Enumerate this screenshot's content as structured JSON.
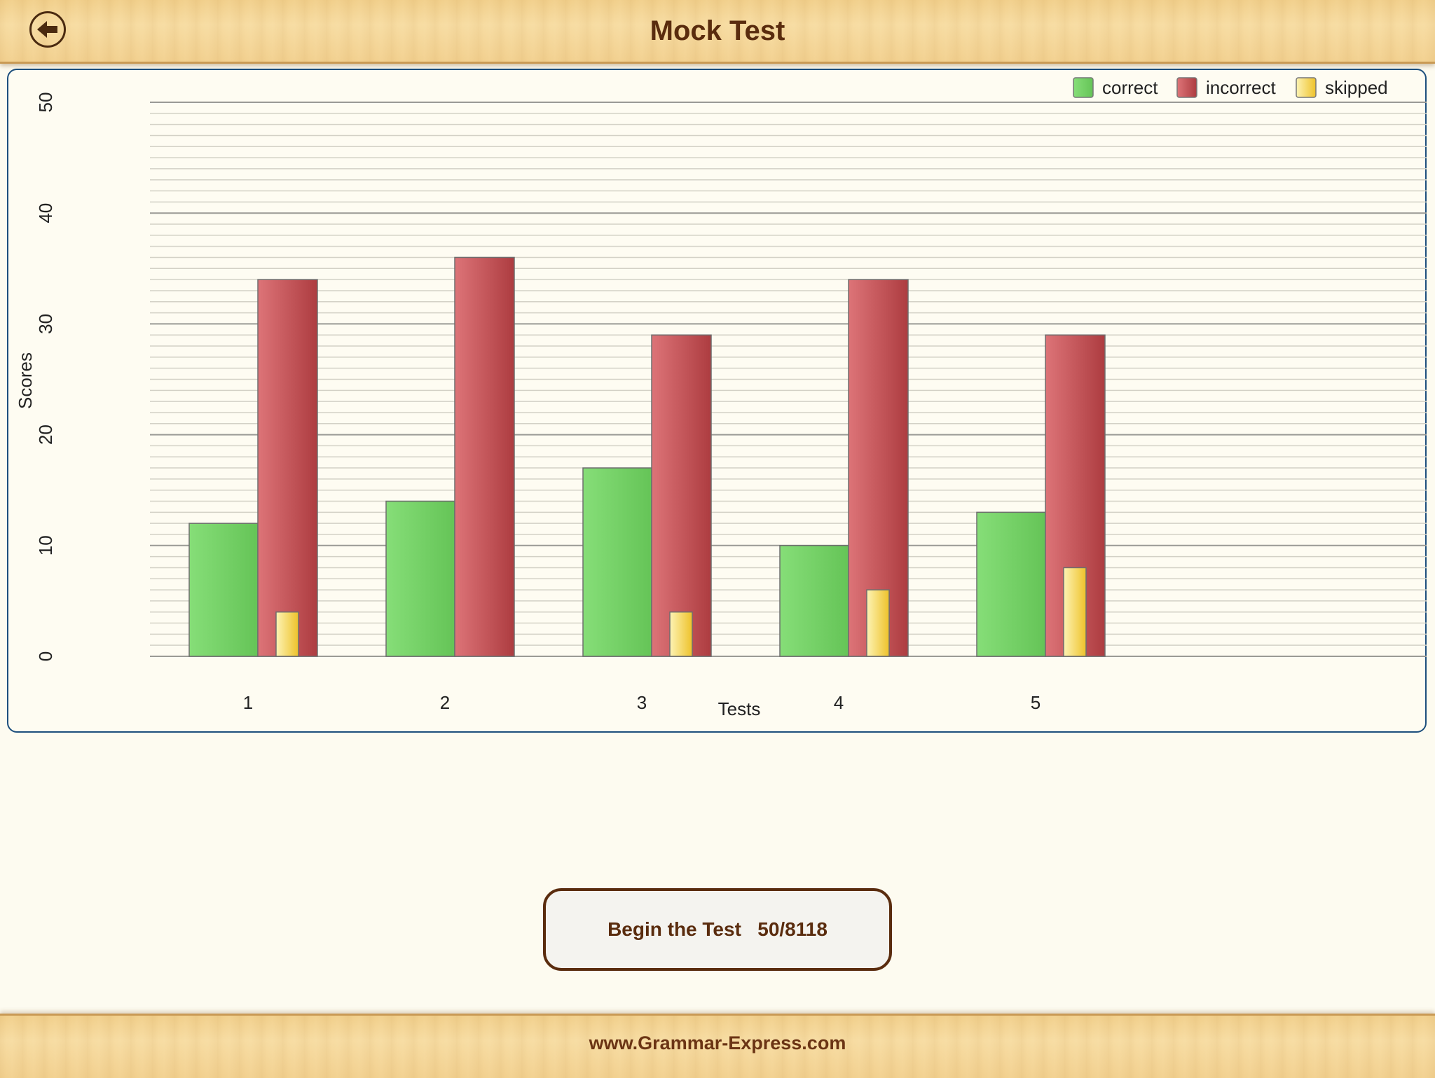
{
  "header": {
    "title": "Mock Test",
    "back_icon": "back-arrow-icon"
  },
  "chart_data": {
    "type": "bar",
    "categories": [
      "1",
      "2",
      "3",
      "4",
      "5"
    ],
    "series": [
      {
        "name": "correct",
        "values": [
          12,
          14,
          17,
          10,
          13
        ],
        "color": "#6fce63"
      },
      {
        "name": "incorrect",
        "values": [
          34,
          36,
          29,
          34,
          29
        ],
        "color": "#c9484d"
      },
      {
        "name": "skipped",
        "values": [
          4,
          0,
          4,
          6,
          8
        ],
        "color": "#f2d040"
      }
    ],
    "xlabel": "Tests",
    "ylabel": "Scores",
    "ylim": [
      0,
      50
    ],
    "yticks": [
      0,
      10,
      20,
      30,
      40,
      50
    ],
    "grid": true,
    "legend": "top-right"
  },
  "actions": {
    "begin_label": "Begin the Test",
    "progress": "50/8118"
  },
  "footer": {
    "url": "www.Grammar-Express.com"
  }
}
